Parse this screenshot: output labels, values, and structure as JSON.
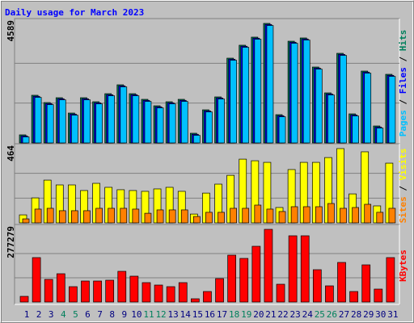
{
  "chart_data": [
    {
      "type": "bar",
      "title": "Daily usage for March 2023",
      "legend_separator": " / ",
      "categories": [
        "1",
        "2",
        "3",
        "4",
        "5",
        "6",
        "7",
        "8",
        "9",
        "10",
        "11",
        "12",
        "13",
        "14",
        "15",
        "16",
        "17",
        "18",
        "19",
        "20",
        "21",
        "22",
        "23",
        "24",
        "25",
        "26",
        "27",
        "28",
        "29",
        "30",
        "31"
      ],
      "ylim": [
        0,
        4589
      ],
      "yticks": [
        4589
      ],
      "grid": true,
      "series": [
        {
          "name": "Hits",
          "color": "#00805c",
          "values": [
            310,
            1830,
            1550,
            1736,
            1147,
            1736,
            1581,
            1891,
            2232,
            1891,
            1674,
            1426,
            1581,
            1674,
            372,
            1271,
            1767,
            3255,
            3752,
            4062,
            4589,
            1085,
            3906,
            4031,
            2914,
            1922,
            3441,
            1116,
            2759,
            651,
            2635
          ]
        },
        {
          "name": "Files",
          "color": "#0000ff",
          "values": [
            270,
            1790,
            1510,
            1696,
            1107,
            1696,
            1541,
            1851,
            2192,
            1851,
            1634,
            1386,
            1541,
            1634,
            332,
            1231,
            1727,
            3215,
            3712,
            4022,
            4549,
            1045,
            3866,
            3991,
            2874,
            1882,
            3401,
            1076,
            2719,
            611,
            2595
          ]
        },
        {
          "name": "Pages",
          "color": "#00c0ff",
          "values": [
            230,
            1750,
            1470,
            1656,
            1067,
            1656,
            1501,
            1811,
            2152,
            1811,
            1594,
            1346,
            1501,
            1594,
            292,
            1191,
            1687,
            3175,
            3672,
            3982,
            4509,
            1005,
            3826,
            3951,
            2834,
            1842,
            3361,
            1036,
            2679,
            571,
            2555
          ]
        }
      ]
    },
    {
      "type": "bar",
      "legend_separator": " / ",
      "categories": [
        "1",
        "2",
        "3",
        "4",
        "5",
        "6",
        "7",
        "8",
        "9",
        "10",
        "11",
        "12",
        "13",
        "14",
        "15",
        "16",
        "17",
        "18",
        "19",
        "20",
        "21",
        "22",
        "23",
        "24",
        "25",
        "26",
        "27",
        "28",
        "29",
        "30",
        "31"
      ],
      "ylim": [
        0,
        464
      ],
      "yticks": [
        464
      ],
      "grid": true,
      "series": [
        {
          "name": "Visits",
          "color": "#ffff00",
          "values": [
            50,
            156,
            267,
            237,
            237,
            202,
            247,
            222,
            207,
            202,
            197,
            212,
            222,
            197,
            55,
            186,
            242,
            297,
            398,
            388,
            378,
            96,
            333,
            378,
            378,
            408,
            464,
            181,
            444,
            106,
            373
          ]
        },
        {
          "name": "Sites",
          "color": "#ff8000",
          "values": [
            25,
            86,
            91,
            76,
            76,
            76,
            91,
            91,
            91,
            86,
            60,
            81,
            81,
            81,
            40,
            66,
            66,
            91,
            91,
            111,
            86,
            71,
            101,
            101,
            101,
            121,
            91,
            96,
            116,
            66,
            91
          ]
        }
      ]
    },
    {
      "type": "bar",
      "categories": [
        "1",
        "2",
        "3",
        "4",
        "5",
        "6",
        "7",
        "8",
        "9",
        "10",
        "11",
        "12",
        "13",
        "14",
        "15",
        "16",
        "17",
        "18",
        "19",
        "20",
        "21",
        "22",
        "23",
        "24",
        "25",
        "26",
        "27",
        "28",
        "29",
        "30",
        "31"
      ],
      "category_colors": [
        "#000080",
        "#000080",
        "#000080",
        "#00805c",
        "#00805c",
        "#000080",
        "#000080",
        "#000080",
        "#000080",
        "#000080",
        "#00805c",
        "#00805c",
        "#000080",
        "#000080",
        "#000080",
        "#000080",
        "#000080",
        "#00805c",
        "#00805c",
        "#000080",
        "#000080",
        "#000080",
        "#000080",
        "#000080",
        "#00805c",
        "#00805c",
        "#000080",
        "#000080",
        "#000080",
        "#000080",
        "#000080"
      ],
      "ylim": [
        0,
        277279
      ],
      "yticks": [
        277279
      ],
      "grid": true,
      "series": [
        {
          "name": "KBytes",
          "color": "#ff0000",
          "values": [
            21568,
            169459,
            86271,
            107838,
            58540,
            80107,
            80107,
            83189,
            117081,
            98595,
            73946,
            64703,
            58540,
            73946,
            12324,
            40054,
            89352,
            178702,
            166378,
            212596,
            277279,
            67784,
            252649,
            252649,
            123243,
            61622,
            150973,
            40054,
            141730,
            49297,
            169459
          ]
        }
      ]
    }
  ]
}
